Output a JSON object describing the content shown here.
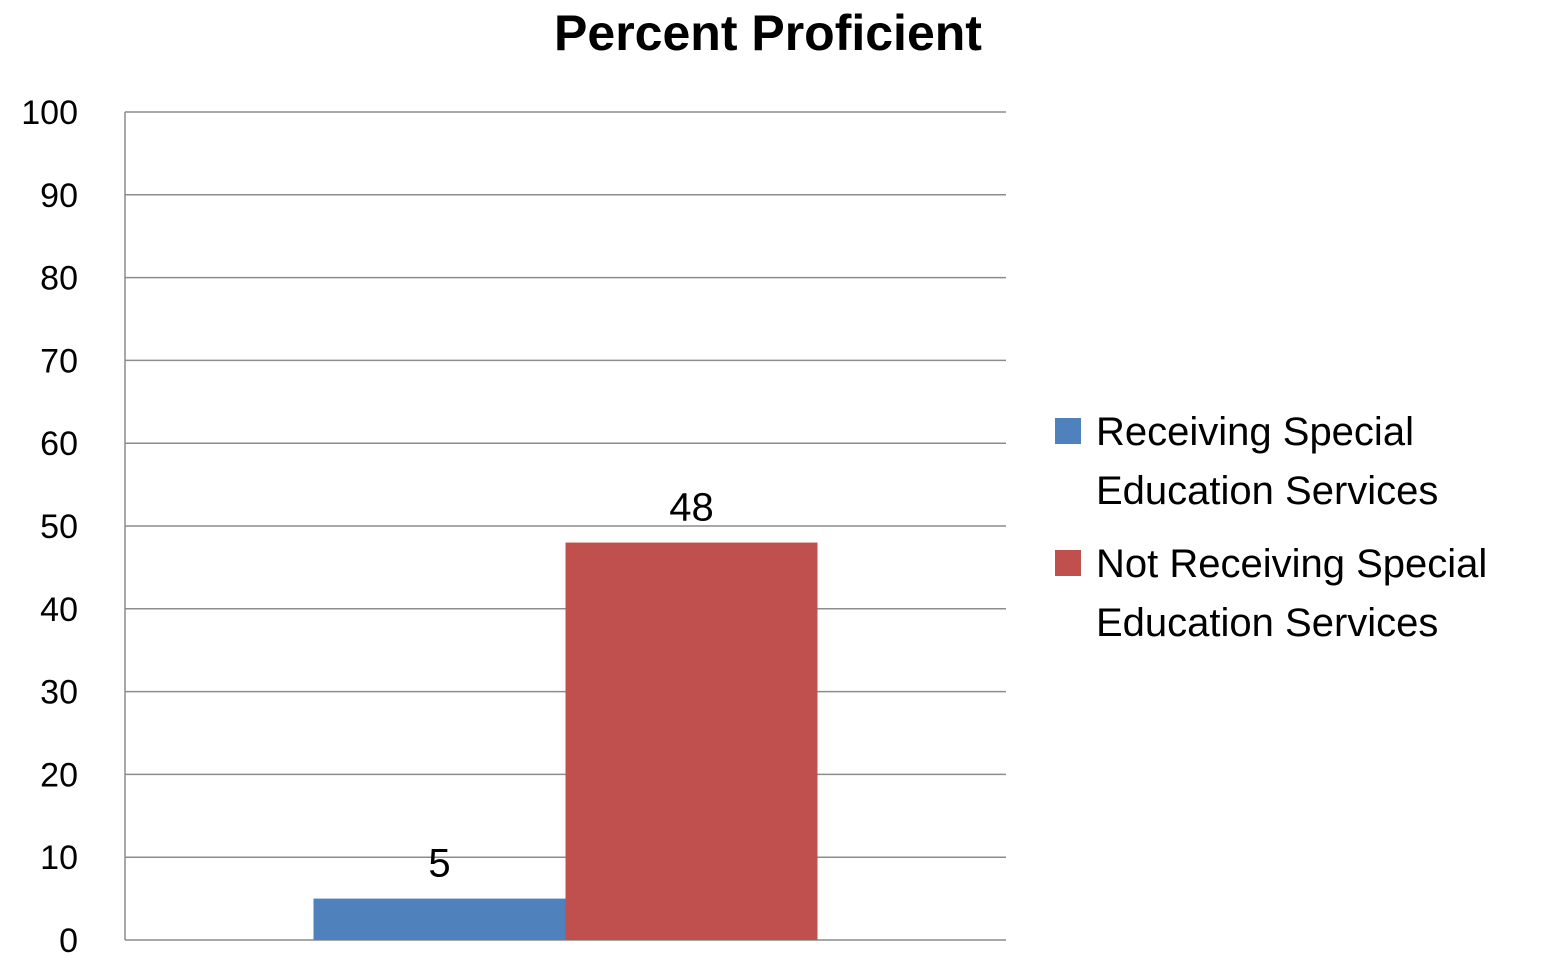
{
  "chart_data": {
    "type": "bar",
    "title": "Percent Proficient",
    "xlabel": "",
    "ylabel": "",
    "ylim": [
      0,
      100
    ],
    "yticks": [
      "0",
      "10",
      "20",
      "30",
      "40",
      "50",
      "60",
      "70",
      "80",
      "90",
      "100"
    ],
    "grid": true,
    "legend_position": "right",
    "categories": [
      ""
    ],
    "series": [
      {
        "name": "Receiving Special Education Services",
        "values": [
          5
        ],
        "color": "#4F81BD",
        "label": "5",
        "legend_lines": [
          "Receiving Special",
          "Education Services"
        ]
      },
      {
        "name": "Not Receiving Special Education Services",
        "values": [
          48
        ],
        "color": "#C0504D",
        "label": "48",
        "legend_lines": [
          "Not Receiving Special",
          "Education Services"
        ]
      }
    ]
  }
}
